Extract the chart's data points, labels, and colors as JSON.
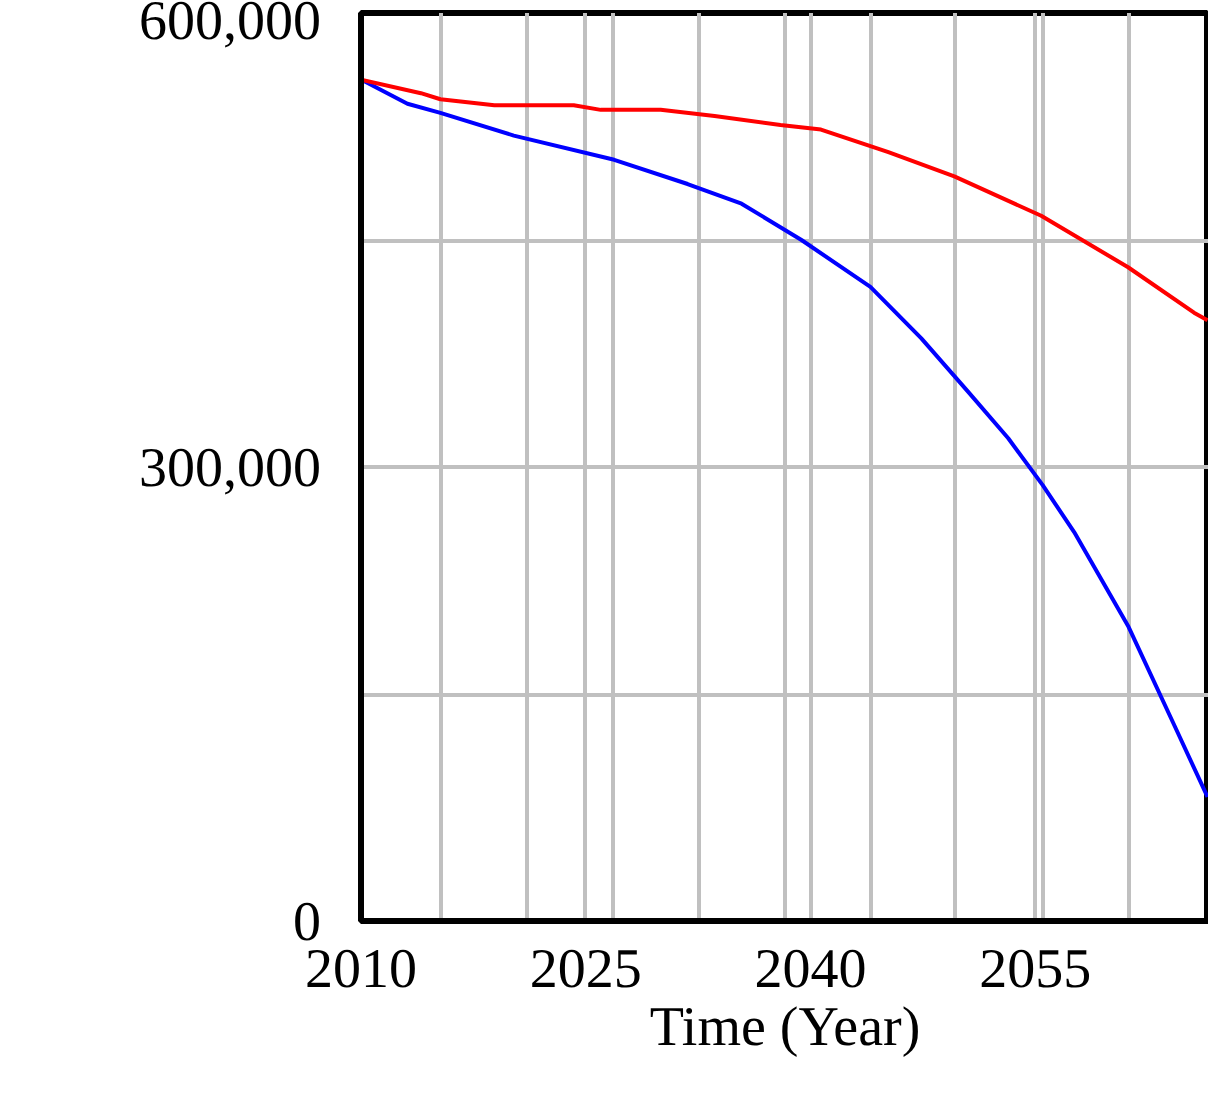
{
  "chart_data": {
    "type": "line",
    "xlabel": "Time (Year)",
    "xlim": [
      2010,
      2066.6
    ],
    "ylim": [
      0,
      600000
    ],
    "xticks": [
      2010,
      {
        "value": 2015.3,
        "label": null
      },
      {
        "value": 2021.1,
        "label": null
      },
      2025,
      {
        "value": 2026.8,
        "label": null
      },
      {
        "value": 2032.6,
        "label": null
      },
      {
        "value": 2038.3,
        "label": null
      },
      2040,
      {
        "value": 2044.0,
        "label": null
      },
      {
        "value": 2049.7,
        "label": null
      },
      2055,
      {
        "value": 2055.5,
        "label": null
      },
      {
        "value": 2061.2,
        "label": null
      }
    ],
    "yticks": [
      {
        "value": 0,
        "label": "0"
      },
      {
        "value": 150000,
        "label": null
      },
      {
        "value": 300000,
        "label": "300,000"
      },
      {
        "value": 450000,
        "label": null
      },
      {
        "value": 600000,
        "label": "600,000"
      }
    ],
    "grid": true,
    "marker": "none",
    "line_style": "solid",
    "series": [
      {
        "color": "#0000ff",
        "x": [
          2010,
          2013.1,
          2015.3,
          2020.2,
          2026.9,
          2031.8,
          2035.4,
          2039.4,
          2044.0,
          2047.4,
          2050.5,
          2053.2,
          2055.5,
          2057.6,
          2061.2,
          2064.3,
          2066.5
        ],
        "values": [
          556000,
          540000,
          534000,
          519000,
          503000,
          487000,
          474000,
          450000,
          419000,
          385000,
          350000,
          319000,
          288000,
          257000,
          195000,
          129000,
          82000
        ]
      },
      {
        "color": "#ff0000",
        "x": [
          2010,
          2014,
          2015.3,
          2018.9,
          2024.2,
          2026,
          2030,
          2033.6,
          2038,
          2040.7,
          2045.2,
          2049.6,
          2055.4,
          2061.2,
          2065.6,
          2066.5
        ],
        "values": [
          556000,
          547000,
          543000,
          539000,
          539000,
          536000,
          536000,
          532000,
          526000,
          523000,
          508000,
          492000,
          466000,
          432000,
          402000,
          397000
        ]
      }
    ]
  }
}
